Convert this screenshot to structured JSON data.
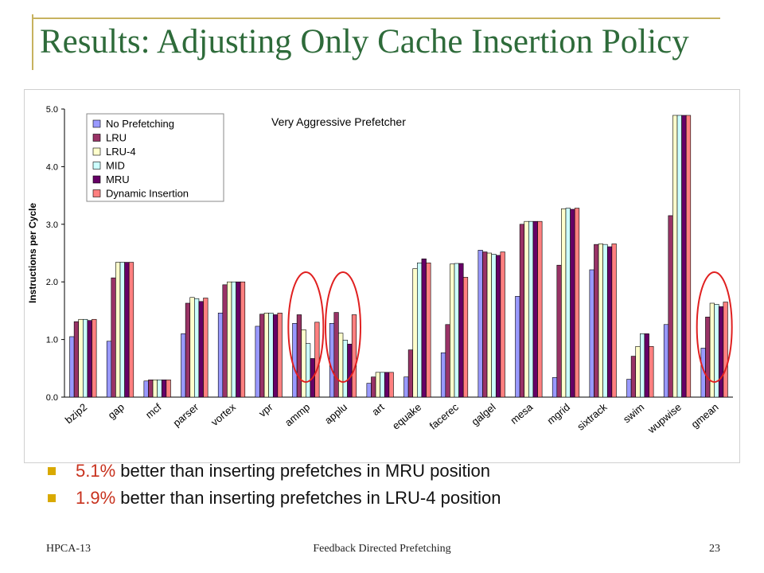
{
  "slide": {
    "title": "Results: Adjusting Only Cache Insertion Policy",
    "bullets": [
      {
        "highlight": "5.1%",
        "text": " better than inserting prefetches in MRU position"
      },
      {
        "highlight": "1.9%",
        "text": " better than inserting prefetches in LRU-4 position"
      }
    ],
    "footer": {
      "left": "HPCA-13",
      "center": "Feedback Directed Prefetching",
      "right": "23"
    }
  },
  "chart_data": {
    "type": "bar",
    "title": "Very Aggressive Prefetcher",
    "xlabel": "",
    "ylabel": "Instructions per Cycle",
    "ylim": [
      0,
      5
    ],
    "yticks": [
      "0.0",
      "1.0",
      "2.0",
      "3.0",
      "4.0",
      "5.0"
    ],
    "grid": false,
    "legend_position": "top-left",
    "categories": [
      "bzip2",
      "gap",
      "mcf",
      "parser",
      "vortex",
      "vpr",
      "ammp",
      "applu",
      "art",
      "equake",
      "facerec",
      "galgel",
      "mesa",
      "mgrid",
      "sixtrack",
      "swim",
      "wupwise",
      "gmean"
    ],
    "series": [
      {
        "name": "No Prefetching",
        "color": "#9999ff",
        "values": [
          1.05,
          0.97,
          0.28,
          1.1,
          1.46,
          1.23,
          1.28,
          1.28,
          0.24,
          0.35,
          0.77,
          2.55,
          1.75,
          0.34,
          2.21,
          0.31,
          1.26,
          0.85
        ]
      },
      {
        "name": "LRU",
        "color": "#993366",
        "values": [
          1.31,
          2.07,
          0.3,
          1.63,
          1.95,
          1.44,
          1.43,
          1.47,
          0.35,
          0.82,
          1.26,
          2.52,
          3.0,
          2.29,
          2.65,
          0.71,
          3.15,
          1.39
        ]
      },
      {
        "name": "LRU-4",
        "color": "#ffffcc",
        "values": [
          1.35,
          2.34,
          0.3,
          1.73,
          2.0,
          1.46,
          1.17,
          1.11,
          0.43,
          2.23,
          2.31,
          2.5,
          3.05,
          3.27,
          2.66,
          0.88,
          4.89,
          1.63
        ]
      },
      {
        "name": "MID",
        "color": "#ccffff",
        "values": [
          1.35,
          2.34,
          0.3,
          1.71,
          2.0,
          1.46,
          0.93,
          0.99,
          0.43,
          2.33,
          2.32,
          2.48,
          3.05,
          3.28,
          2.65,
          1.1,
          4.89,
          1.61
        ]
      },
      {
        "name": "MRU",
        "color": "#660066",
        "values": [
          1.33,
          2.34,
          0.3,
          1.66,
          2.0,
          1.43,
          0.67,
          0.92,
          0.43,
          2.4,
          2.32,
          2.46,
          3.05,
          3.26,
          2.61,
          1.1,
          4.89,
          1.57
        ]
      },
      {
        "name": "Dynamic Insertion",
        "color": "#ff8080",
        "values": [
          1.35,
          2.34,
          0.3,
          1.72,
          2.0,
          1.46,
          1.3,
          1.43,
          0.43,
          2.33,
          2.08,
          2.52,
          3.05,
          3.28,
          2.66,
          0.88,
          4.89,
          1.65
        ]
      }
    ],
    "annotations": [
      {
        "type": "ellipse",
        "color": "#e02020",
        "around": "ammp"
      },
      {
        "type": "ellipse",
        "color": "#e02020",
        "around": "applu"
      },
      {
        "type": "ellipse",
        "color": "#e02020",
        "around": "gmean"
      }
    ]
  }
}
